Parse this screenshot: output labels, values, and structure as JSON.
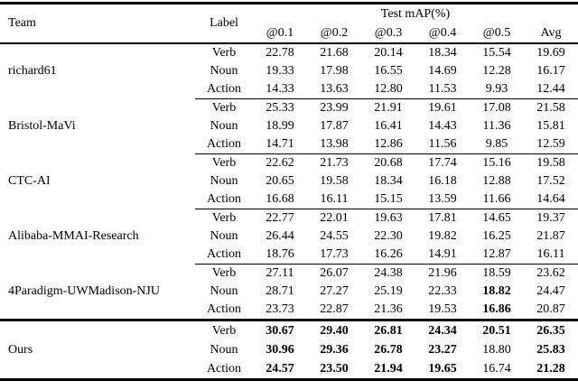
{
  "table": {
    "header": {
      "team": "Team",
      "label": "Label",
      "group_title": "Test mAP(%)",
      "metric_columns": [
        "@0.1",
        "@0.2",
        "@0.3",
        "@0.4",
        "@0.5",
        "Avg"
      ]
    },
    "groups": [
      {
        "team": "richard61",
        "separator": "partial",
        "rows": [
          {
            "label": "Verb",
            "values": [
              "22.78",
              "21.68",
              "20.14",
              "18.34",
              "15.54",
              "19.69"
            ],
            "bold": [
              false,
              false,
              false,
              false,
              false,
              false
            ]
          },
          {
            "label": "Noun",
            "values": [
              "19.33",
              "17.98",
              "16.55",
              "14.69",
              "12.28",
              "16.17"
            ],
            "bold": [
              false,
              false,
              false,
              false,
              false,
              false
            ]
          },
          {
            "label": "Action",
            "values": [
              "14.33",
              "13.63",
              "12.80",
              "11.53",
              "9.93",
              "12.44"
            ],
            "bold": [
              false,
              false,
              false,
              false,
              false,
              false
            ]
          }
        ]
      },
      {
        "team": "Bristol-MaVi",
        "separator": "partial",
        "rows": [
          {
            "label": "Verb",
            "values": [
              "25.33",
              "23.99",
              "21.91",
              "19.61",
              "17.08",
              "21.58"
            ],
            "bold": [
              false,
              false,
              false,
              false,
              false,
              false
            ]
          },
          {
            "label": "Noun",
            "values": [
              "18.99",
              "17.87",
              "16.41",
              "14.43",
              "11.36",
              "15.81"
            ],
            "bold": [
              false,
              false,
              false,
              false,
              false,
              false
            ]
          },
          {
            "label": "Action",
            "values": [
              "14.71",
              "13.98",
              "12.86",
              "11.56",
              "9.85",
              "12.59"
            ],
            "bold": [
              false,
              false,
              false,
              false,
              false,
              false
            ]
          }
        ]
      },
      {
        "team": "CTC-AI",
        "separator": "partial",
        "rows": [
          {
            "label": "Verb",
            "values": [
              "22.62",
              "21.73",
              "20.68",
              "17.74",
              "15.16",
              "19.58"
            ],
            "bold": [
              false,
              false,
              false,
              false,
              false,
              false
            ]
          },
          {
            "label": "Noun",
            "values": [
              "20.65",
              "19.58",
              "18.34",
              "16.18",
              "12.88",
              "17.52"
            ],
            "bold": [
              false,
              false,
              false,
              false,
              false,
              false
            ]
          },
          {
            "label": "Action",
            "values": [
              "16.68",
              "16.11",
              "15.15",
              "13.59",
              "11.66",
              "14.64"
            ],
            "bold": [
              false,
              false,
              false,
              false,
              false,
              false
            ]
          }
        ]
      },
      {
        "team": "Alibaba-MMAI-Research",
        "separator": "partial",
        "rows": [
          {
            "label": "Verb",
            "values": [
              "22.77",
              "22.01",
              "19.63",
              "17.81",
              "14.65",
              "19.37"
            ],
            "bold": [
              false,
              false,
              false,
              false,
              false,
              false
            ]
          },
          {
            "label": "Noun",
            "values": [
              "26.44",
              "24.55",
              "22.30",
              "19.82",
              "16.25",
              "21.87"
            ],
            "bold": [
              false,
              false,
              false,
              false,
              false,
              false
            ]
          },
          {
            "label": "Action",
            "values": [
              "18.76",
              "17.73",
              "16.26",
              "14.91",
              "12.87",
              "16.11"
            ],
            "bold": [
              false,
              false,
              false,
              false,
              false,
              false
            ]
          }
        ]
      },
      {
        "team": "4Paradigm-UWMadison-NJU",
        "separator": "strong",
        "rows": [
          {
            "label": "Verb",
            "values": [
              "27.11",
              "26.07",
              "24.38",
              "21.96",
              "18.59",
              "23.62"
            ],
            "bold": [
              false,
              false,
              false,
              false,
              false,
              false
            ]
          },
          {
            "label": "Noun",
            "values": [
              "28.71",
              "27.27",
              "25.19",
              "22.33",
              "18.82",
              "24.47"
            ],
            "bold": [
              false,
              false,
              false,
              false,
              true,
              false
            ]
          },
          {
            "label": "Action",
            "values": [
              "23.73",
              "22.87",
              "21.36",
              "19.53",
              "16.86",
              "20.87"
            ],
            "bold": [
              false,
              false,
              false,
              false,
              true,
              false
            ]
          }
        ]
      },
      {
        "team": "Ours",
        "separator": "none",
        "rows": [
          {
            "label": "Verb",
            "values": [
              "30.67",
              "29.40",
              "26.81",
              "24.34",
              "20.51",
              "26.35"
            ],
            "bold": [
              true,
              true,
              true,
              true,
              true,
              true
            ]
          },
          {
            "label": "Noun",
            "values": [
              "30.96",
              "29.36",
              "26.78",
              "23.27",
              "18.80",
              "25.83"
            ],
            "bold": [
              true,
              true,
              true,
              true,
              false,
              true
            ]
          },
          {
            "label": "Action",
            "values": [
              "24.57",
              "23.50",
              "21.94",
              "19.65",
              "16.74",
              "21.28"
            ],
            "bold": [
              true,
              true,
              true,
              true,
              false,
              true
            ]
          }
        ]
      }
    ]
  },
  "colors": {
    "background": "#ffffff",
    "text": "#000000",
    "rule": "#000000"
  }
}
